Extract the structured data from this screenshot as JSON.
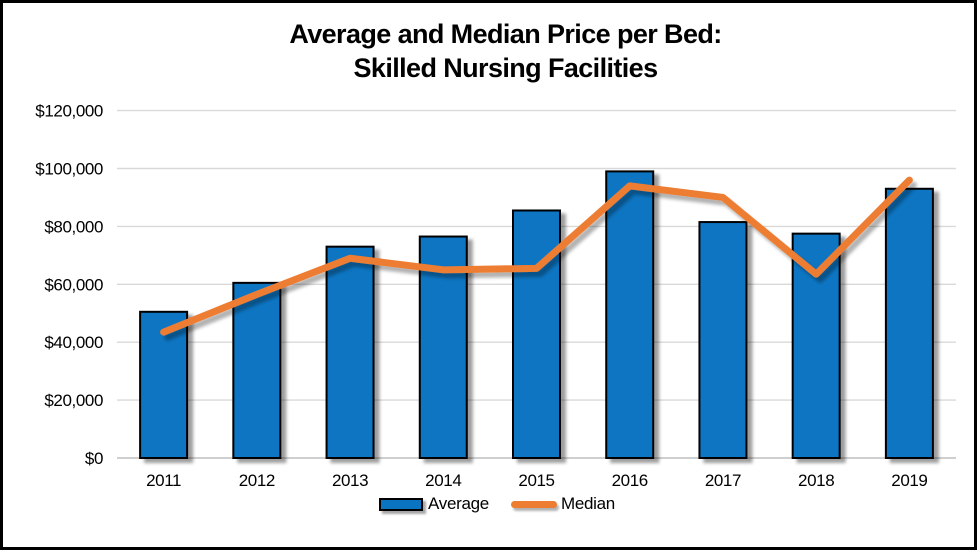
{
  "title": {
    "line1": "Average and Median Price per Bed:",
    "line2": "Skilled Nursing Facilities"
  },
  "legend": {
    "items": [
      {
        "label": "Average",
        "type": "bar"
      },
      {
        "label": "Median",
        "type": "line"
      }
    ]
  },
  "colors": {
    "bar_fill": "#0B74C2",
    "bar_stroke": "#000000",
    "line": "#ED7D31",
    "gridline": "#D9D9D9",
    "baseline": "#BFBFBF",
    "frame_border": "#000000",
    "text": "#000000"
  },
  "chart_data": {
    "type": "bar",
    "title": "Average and Median Price per Bed: Skilled Nursing Facilities",
    "categories": [
      "2011",
      "2012",
      "2013",
      "2014",
      "2015",
      "2016",
      "2017",
      "2018",
      "2019"
    ],
    "series": [
      {
        "name": "Average",
        "type": "bar",
        "values": [
          50500,
          60500,
          73000,
          76500,
          85500,
          99000,
          81500,
          77500,
          93000
        ]
      },
      {
        "name": "Median",
        "type": "line",
        "values": [
          43500,
          56500,
          69000,
          65000,
          65500,
          94000,
          90000,
          63500,
          96000
        ]
      }
    ],
    "xlabel": "",
    "ylabel": "",
    "ylim": [
      0,
      120000
    ],
    "y_ticks": [
      {
        "value": 0,
        "label": "$0"
      },
      {
        "value": 20000,
        "label": "$20,000"
      },
      {
        "value": 40000,
        "label": "$40,000"
      },
      {
        "value": 60000,
        "label": "$60,000"
      },
      {
        "value": 80000,
        "label": "$80,000"
      },
      {
        "value": 100000,
        "label": "$100,000"
      },
      {
        "value": 120000,
        "label": "$120,000"
      }
    ],
    "grid": true,
    "legend_position": "bottom"
  }
}
